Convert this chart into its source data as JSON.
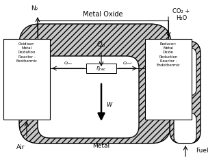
{
  "bg_color": "#ffffff",
  "hatch_color": "#aaaaaa",
  "oxidiser_text": "Oxidiser:\nMetal\nOxidation\nReactor -\nExothermic",
  "reducer_text": "Reducer:\nMetal\nOxide\nReduction\nReactor -\nEndothermic",
  "n2_label": "N₂",
  "co2_label": "CO₂ +\nH₂O",
  "metal_oxide_label": "Metal Oxide",
  "air_label": "Air",
  "fuel_label": "Fuel",
  "metal_label": "Metal",
  "qo_label": "$Q_o$",
  "qrec_label": "$Q_{rec}$",
  "qred_label": "$Q_{red}$",
  "nrec_label": "$\\eta_{rec}$",
  "w_label": "$W$"
}
